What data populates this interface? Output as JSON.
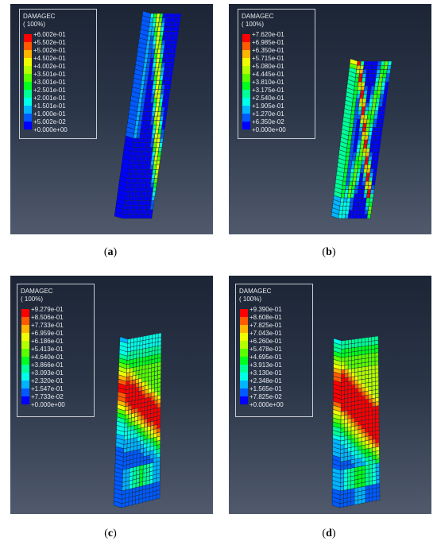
{
  "figure": {
    "legend_title": "DAMAGEC",
    "legend_colors": [
      "#ff0000",
      "#ff5a00",
      "#ffb400",
      "#f0ff00",
      "#b4ff00",
      "#5aff00",
      "#00ff1e",
      "#00ff96",
      "#00ffe6",
      "#00b4ff",
      "#005aff",
      "#0000ff"
    ],
    "panels": [
      {
        "label": "a",
        "legend_subtitle": "(      100%)",
        "legend_values": [
          "+6.002e-01",
          "+5.502e-01",
          "+5.002e-01",
          "+4.502e-01",
          "+4.002e-01",
          "+3.501e-01",
          "+3.001e-01",
          "+2.501e-01",
          "+2.001e-01",
          "+1.501e-01",
          "+1.000e-01",
          "+5.002e-02",
          "+0.000e+00"
        ]
      },
      {
        "label": "b",
        "legend_subtitle": "(      100%)",
        "legend_values": [
          "+7.620e-01",
          "+6.985e-01",
          "+6.350e-01",
          "+5.715e-01",
          "+5.080e-01",
          "+4.445e-01",
          "+3.810e-01",
          "+3.175e-01",
          "+2.540e-01",
          "+1.905e-01",
          "+1.270e-01",
          "+6.350e-02",
          "+0.000e+00"
        ]
      },
      {
        "label": "c",
        "legend_subtitle": "(      100%)",
        "legend_values": [
          "+9.279e-01",
          "+8.506e-01",
          "+7.733e-01",
          "+6.959e-01",
          "+6.186e-01",
          "+5.413e-01",
          "+4.640e-01",
          "+3.866e-01",
          "+3.093e-01",
          "+2.320e-01",
          "+1.547e-01",
          "+7.733e-02",
          "+0.000e+00"
        ]
      },
      {
        "label": "d",
        "legend_subtitle": "(      100%)",
        "legend_values": [
          "+9.390e-01",
          "+8.608e-01",
          "+7.825e-01",
          "+7.043e-01",
          "+6.260e-01",
          "+5.478e-01",
          "+4.695e-01",
          "+3.913e-01",
          "+3.130e-01",
          "+2.348e-01",
          "+1.565e-01",
          "+7.825e-02",
          "+0.000e+00"
        ]
      }
    ]
  }
}
